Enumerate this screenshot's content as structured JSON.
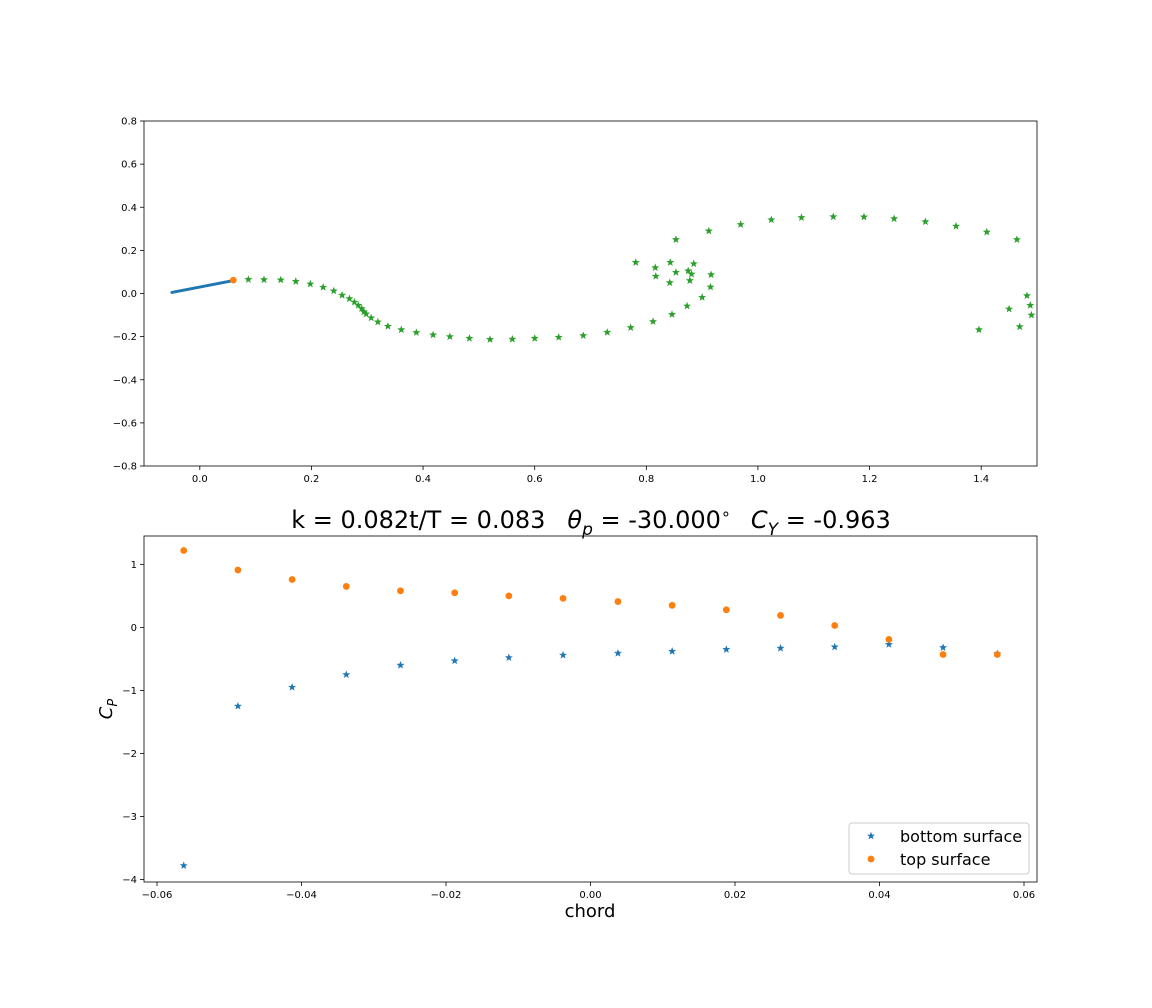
{
  "chart_data": [
    {
      "type": "scatter",
      "title": "",
      "xlabel": "",
      "ylabel": "",
      "xlim": [
        -0.1,
        1.5
      ],
      "ylim": [
        -0.8,
        0.8
      ],
      "x_ticks": [
        "0.0",
        "0.2",
        "0.4",
        "0.6",
        "0.8",
        "1.0",
        "1.2",
        "1.4"
      ],
      "x_tick_values": [
        0.0,
        0.2,
        0.4,
        0.6,
        0.8,
        1.0,
        1.2,
        1.4
      ],
      "y_ticks": [
        "0.8",
        "0.6",
        "0.4",
        "0.2",
        "0.0",
        "−0.2",
        "−0.4",
        "−0.6",
        "−0.8"
      ],
      "y_tick_values": [
        0.8,
        0.6,
        0.4,
        0.2,
        0.0,
        -0.2,
        -0.4,
        -0.6,
        -0.8
      ],
      "grid": false,
      "colors": {
        "plate": "#1f77b4",
        "edge": "#ff7f0e",
        "wake": "#2ca02c"
      },
      "plate_line": {
        "x": [
          -0.05,
          0.06
        ],
        "y": [
          0.005,
          0.06
        ]
      },
      "edge_point": {
        "x": 0.06,
        "y": 0.062
      },
      "wake_points": [
        [
          0.087,
          0.065
        ],
        [
          0.115,
          0.064
        ],
        [
          0.145,
          0.063
        ],
        [
          0.172,
          0.056
        ],
        [
          0.198,
          0.044
        ],
        [
          0.221,
          0.029
        ],
        [
          0.24,
          0.012
        ],
        [
          0.255,
          -0.008
        ],
        [
          0.268,
          -0.024
        ],
        [
          0.277,
          -0.04
        ],
        [
          0.284,
          -0.055
        ],
        [
          0.29,
          -0.07
        ],
        [
          0.294,
          -0.085
        ],
        [
          0.298,
          -0.095
        ],
        [
          0.307,
          -0.113
        ],
        [
          0.319,
          -0.132
        ],
        [
          0.337,
          -0.152
        ],
        [
          0.361,
          -0.168
        ],
        [
          0.388,
          -0.181
        ],
        [
          0.418,
          -0.192
        ],
        [
          0.448,
          -0.2
        ],
        [
          0.483,
          -0.208
        ],
        [
          0.52,
          -0.213
        ],
        [
          0.56,
          -0.212
        ],
        [
          0.6,
          -0.208
        ],
        [
          0.643,
          -0.203
        ],
        [
          0.687,
          -0.195
        ],
        [
          0.73,
          -0.18
        ],
        [
          0.772,
          -0.158
        ],
        [
          0.812,
          -0.13
        ],
        [
          0.846,
          -0.097
        ],
        [
          0.873,
          -0.058
        ],
        [
          0.9,
          -0.018
        ],
        [
          0.915,
          0.03
        ],
        [
          0.916,
          0.087
        ],
        [
          0.885,
          0.138
        ],
        [
          0.853,
          0.25
        ],
        [
          0.781,
          0.144
        ],
        [
          0.816,
          0.12
        ],
        [
          0.817,
          0.08
        ],
        [
          0.843,
          0.144
        ],
        [
          0.853,
          0.098
        ],
        [
          0.842,
          0.05
        ],
        [
          0.875,
          0.105
        ],
        [
          0.878,
          0.06
        ],
        [
          0.881,
          0.09
        ],
        [
          0.912,
          0.29
        ],
        [
          0.969,
          0.32
        ],
        [
          1.024,
          0.342
        ],
        [
          1.078,
          0.352
        ],
        [
          1.135,
          0.356
        ],
        [
          1.19,
          0.355
        ],
        [
          1.244,
          0.347
        ],
        [
          1.3,
          0.333
        ],
        [
          1.355,
          0.312
        ],
        [
          1.41,
          0.285
        ],
        [
          1.464,
          0.25
        ],
        [
          1.396,
          -0.168
        ],
        [
          1.45,
          -0.072
        ],
        [
          1.469,
          -0.154
        ],
        [
          1.482,
          -0.01
        ],
        [
          1.488,
          -0.055
        ],
        [
          1.49,
          -0.1
        ]
      ]
    },
    {
      "type": "scatter",
      "title": "k = 0.082t/T = 0.083   θp = -30.000°    CY = -0.963",
      "title_parts": {
        "lead": "k = 0.082t/T = 0.083",
        "theta": "θ",
        "theta_sub": "p",
        "theta_value": " = -30.000",
        "degree": "∘",
        "c": "C",
        "c_sub": "Y",
        "c_value": " = -0.963"
      },
      "xlabel": "chord",
      "ylabel_main": "C",
      "ylabel_sub": "P",
      "xlim": [
        -0.0618,
        0.0618
      ],
      "ylim": [
        -4.04,
        1.45
      ],
      "x_ticks": [
        "−0.06",
        "−0.04",
        "−0.02",
        "0.00",
        "0.02",
        "0.04",
        "0.06"
      ],
      "x_tick_values": [
        -0.06,
        -0.04,
        -0.02,
        0.0,
        0.02,
        0.04,
        0.06
      ],
      "y_ticks": [
        "1",
        "0",
        "−1",
        "−2",
        "−3",
        "−4"
      ],
      "y_tick_values": [
        1,
        0,
        -1,
        -2,
        -3,
        -4
      ],
      "grid": false,
      "legend_position": "lower-right",
      "x": [
        -0.0563,
        -0.0488,
        -0.0413,
        -0.0338,
        -0.0263,
        -0.0188,
        -0.0113,
        -0.0038,
        0.0038,
        0.0113,
        0.0188,
        0.0263,
        0.0338,
        0.0413,
        0.0488,
        0.0563
      ],
      "series": [
        {
          "name": "bottom surface",
          "marker": "star",
          "color": "#1f77b4",
          "values": [
            -3.78,
            -1.25,
            -0.95,
            -0.75,
            -0.6,
            -0.53,
            -0.48,
            -0.44,
            -0.41,
            -0.38,
            -0.35,
            -0.33,
            -0.31,
            -0.27,
            -0.32,
            -0.42
          ]
        },
        {
          "name": "top surface",
          "marker": "circle",
          "color": "#ff7f0e",
          "values": [
            1.22,
            0.91,
            0.76,
            0.65,
            0.58,
            0.55,
            0.5,
            0.46,
            0.41,
            0.35,
            0.28,
            0.19,
            0.03,
            -0.19,
            -0.43,
            -0.43
          ]
        }
      ]
    }
  ]
}
